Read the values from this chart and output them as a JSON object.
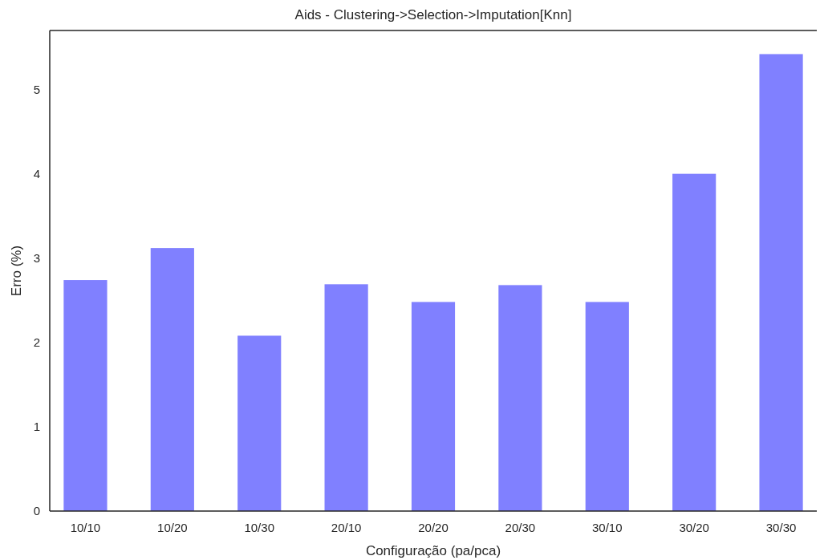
{
  "chart_data": {
    "type": "bar",
    "title": "Aids - Clustering->Selection->Imputation[Knn]",
    "xlabel": "Configuração (pa/pca)",
    "ylabel": "Erro (%)",
    "categories": [
      "10/10",
      "10/20",
      "10/30",
      "20/10",
      "20/20",
      "20/30",
      "30/10",
      "30/20",
      "30/30"
    ],
    "values": [
      2.74,
      3.12,
      2.08,
      2.69,
      2.48,
      2.68,
      2.48,
      4.0,
      5.42
    ],
    "color": "#8080ff",
    "ylim": [
      0,
      5.7
    ],
    "yticks": [
      0,
      1,
      2,
      3,
      4,
      5
    ],
    "grid": false
  }
}
